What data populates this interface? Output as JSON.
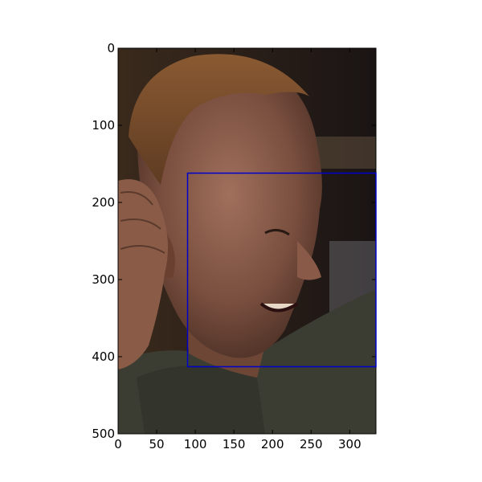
{
  "chart_data": {
    "type": "image",
    "title": "",
    "xlabel": "",
    "ylabel": "",
    "xlim": [
      0,
      334
    ],
    "ylim": [
      500,
      0
    ],
    "x_ticks": [
      0,
      50,
      100,
      150,
      200,
      250,
      300
    ],
    "y_ticks": [
      0,
      100,
      200,
      300,
      400,
      500
    ],
    "x_tick_labels": [
      "0",
      "50",
      "100",
      "150",
      "200",
      "250",
      "300"
    ],
    "y_tick_labels": [
      "0",
      "100",
      "200",
      "300",
      "400",
      "500"
    ],
    "grid": false,
    "image_subject": "photo of a smiling man with short reddish hair, hand raised near his ear",
    "annotations": [
      {
        "type": "bounding-box",
        "label": "face",
        "x0": 90,
        "y0": 162,
        "x1": 334,
        "y1": 413,
        "color": "#0000cc"
      }
    ]
  }
}
